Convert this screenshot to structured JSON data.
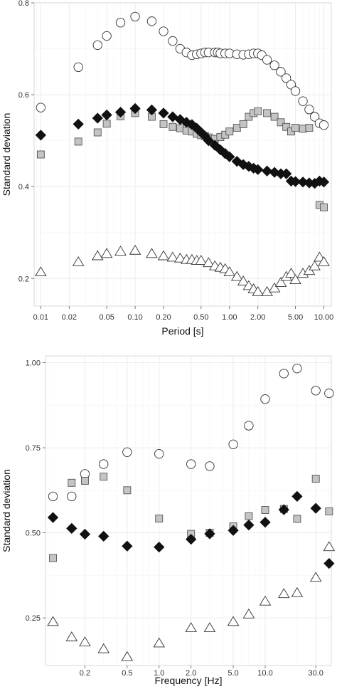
{
  "chart_data": [
    {
      "type": "scatter",
      "xscale": "log",
      "xlabel": "Period [s]",
      "ylabel": "Standard deviation",
      "xlim": [
        0.0085,
        12
      ],
      "ylim": [
        0.14,
        0.8
      ],
      "xticks": [
        0.01,
        0.02,
        0.05,
        0.1,
        0.2,
        0.5,
        1.0,
        2.0,
        5.0,
        10.0
      ],
      "xtick_labels": [
        "0.01",
        "0.02",
        "0.05",
        "0.10",
        "0.20",
        "0.50",
        "1.00",
        "2.00",
        "5.00",
        "10.00"
      ],
      "yticks": [
        0.2,
        0.4,
        0.6,
        0.8
      ],
      "ytick_labels": [
        "0.2",
        "0.4",
        "0.6",
        "0.8"
      ],
      "grid": true,
      "series": [
        {
          "marker": "circle",
          "fill": "#ffffff",
          "stroke": "#333333",
          "x": [
            0.01,
            0.025,
            0.04,
            0.05,
            0.07,
            0.1,
            0.15,
            0.2,
            0.25,
            0.3,
            0.35,
            0.4,
            0.45,
            0.5,
            0.55,
            0.6,
            0.7,
            0.75,
            0.8,
            0.9,
            1.0,
            1.2,
            1.4,
            1.6,
            1.8,
            2.0,
            2.2,
            2.5,
            3.0,
            3.5,
            4.0,
            4.5,
            5.0,
            6.0,
            7.0,
            8.0,
            9.0,
            10.0
          ],
          "y": [
            0.572,
            0.66,
            0.708,
            0.728,
            0.757,
            0.77,
            0.76,
            0.738,
            0.717,
            0.7,
            0.692,
            0.686,
            0.688,
            0.69,
            0.692,
            0.692,
            0.692,
            0.692,
            0.69,
            0.69,
            0.69,
            0.688,
            0.687,
            0.688,
            0.69,
            0.69,
            0.686,
            0.676,
            0.664,
            0.65,
            0.636,
            0.622,
            0.608,
            0.586,
            0.568,
            0.552,
            0.538,
            0.534
          ]
        },
        {
          "marker": "square",
          "fill": "#c4c4c4",
          "stroke": "#555555",
          "x": [
            0.01,
            0.025,
            0.04,
            0.05,
            0.07,
            0.1,
            0.15,
            0.2,
            0.25,
            0.3,
            0.35,
            0.4,
            0.45,
            0.5,
            0.55,
            0.6,
            0.7,
            0.8,
            0.9,
            1.0,
            1.2,
            1.4,
            1.6,
            1.8,
            2.0,
            2.5,
            3.0,
            3.5,
            4.0,
            4.5,
            5.0,
            6.0,
            7.0,
            9.0,
            10.0
          ],
          "y": [
            0.47,
            0.498,
            0.518,
            0.537,
            0.553,
            0.56,
            0.552,
            0.536,
            0.53,
            0.527,
            0.522,
            0.52,
            0.515,
            0.512,
            0.51,
            0.507,
            0.504,
            0.508,
            0.513,
            0.52,
            0.528,
            0.536,
            0.552,
            0.56,
            0.564,
            0.56,
            0.552,
            0.54,
            0.53,
            0.52,
            0.528,
            0.526,
            0.528,
            0.36,
            0.355
          ]
        },
        {
          "marker": "diamond",
          "fill": "#111111",
          "stroke": "#111111",
          "x": [
            0.01,
            0.025,
            0.04,
            0.05,
            0.07,
            0.1,
            0.15,
            0.2,
            0.25,
            0.3,
            0.35,
            0.4,
            0.45,
            0.5,
            0.55,
            0.6,
            0.7,
            0.8,
            0.9,
            1.0,
            1.2,
            1.4,
            1.6,
            1.8,
            2.0,
            2.5,
            3.0,
            3.5,
            4.0,
            4.5,
            5.0,
            6.0,
            7.0,
            8.0,
            9.0,
            10.0
          ],
          "y": [
            0.512,
            0.536,
            0.549,
            0.556,
            0.562,
            0.57,
            0.567,
            0.56,
            0.552,
            0.546,
            0.54,
            0.535,
            0.527,
            0.518,
            0.51,
            0.5,
            0.49,
            0.48,
            0.472,
            0.465,
            0.455,
            0.448,
            0.444,
            0.44,
            0.437,
            0.434,
            0.431,
            0.428,
            0.428,
            0.412,
            0.411,
            0.41,
            0.408,
            0.407,
            0.412,
            0.41
          ]
        },
        {
          "marker": "triangle",
          "fill": "#ffffff",
          "stroke": "#333333",
          "x": [
            0.01,
            0.025,
            0.04,
            0.05,
            0.07,
            0.1,
            0.15,
            0.2,
            0.25,
            0.3,
            0.35,
            0.4,
            0.45,
            0.5,
            0.6,
            0.7,
            0.8,
            0.9,
            1.0,
            1.2,
            1.4,
            1.6,
            1.8,
            2.0,
            2.5,
            3.0,
            3.5,
            4.0,
            4.5,
            5.0,
            6.0,
            7.0,
            8.0,
            9.0,
            10.0
          ],
          "y": [
            0.215,
            0.237,
            0.25,
            0.255,
            0.26,
            0.262,
            0.255,
            0.25,
            0.247,
            0.245,
            0.242,
            0.242,
            0.24,
            0.24,
            0.235,
            0.228,
            0.225,
            0.222,
            0.215,
            0.205,
            0.195,
            0.185,
            0.178,
            0.172,
            0.172,
            0.18,
            0.192,
            0.205,
            0.212,
            0.198,
            0.212,
            0.218,
            0.228,
            0.247,
            0.237
          ]
        }
      ]
    },
    {
      "type": "scatter",
      "xscale": "log",
      "xlabel": "Frequency [Hz]",
      "ylabel": "Standard deviation",
      "xlim": [
        0.085,
        42
      ],
      "ylim": [
        0.11,
        1.02
      ],
      "xticks": [
        0.2,
        0.5,
        1.0,
        2.0,
        5.0,
        10.0,
        30.0
      ],
      "xtick_labels": [
        "0.2",
        "0.5",
        "1.0",
        "2.0",
        "5.0",
        "10.0",
        "30.0"
      ],
      "yticks": [
        0.25,
        0.5,
        0.75,
        1.0
      ],
      "ytick_labels": [
        "0.25",
        "0.50",
        "0.75",
        "1.00"
      ],
      "grid": true,
      "series": [
        {
          "marker": "circle",
          "fill": "#ffffff",
          "stroke": "#333333",
          "x": [
            0.1,
            0.15,
            0.2,
            0.3,
            0.5,
            1.0,
            2.0,
            3.0,
            5.0,
            7.0,
            10.0,
            15.0,
            20.0,
            30.0,
            40.0
          ],
          "y": [
            0.607,
            0.607,
            0.673,
            0.702,
            0.737,
            0.732,
            0.702,
            0.696,
            0.76,
            0.815,
            0.893,
            0.968,
            0.983,
            0.918,
            0.91
          ]
        },
        {
          "marker": "square",
          "fill": "#c4c4c4",
          "stroke": "#555555",
          "x": [
            0.1,
            0.15,
            0.2,
            0.3,
            0.5,
            1.0,
            2.0,
            3.0,
            5.0,
            7.0,
            10.0,
            15.0,
            20.0,
            30.0,
            40.0
          ],
          "y": [
            0.426,
            0.647,
            0.653,
            0.665,
            0.625,
            0.542,
            0.497,
            0.5,
            0.519,
            0.549,
            0.567,
            0.57,
            0.541,
            0.659,
            0.563
          ]
        },
        {
          "marker": "diamond",
          "fill": "#111111",
          "stroke": "#111111",
          "x": [
            0.1,
            0.15,
            0.2,
            0.3,
            0.5,
            1.0,
            2.0,
            3.0,
            5.0,
            7.0,
            10.0,
            15.0,
            20.0,
            30.0,
            40.0
          ],
          "y": [
            0.545,
            0.513,
            0.496,
            0.49,
            0.461,
            0.458,
            0.481,
            0.497,
            0.507,
            0.523,
            0.531,
            0.568,
            0.607,
            0.572,
            0.41
          ]
        },
        {
          "marker": "triangle",
          "fill": "#ffffff",
          "stroke": "#333333",
          "x": [
            0.1,
            0.15,
            0.2,
            0.3,
            0.5,
            1.0,
            2.0,
            3.0,
            5.0,
            7.0,
            10.0,
            15.0,
            20.0,
            30.0,
            40.0
          ],
          "y": [
            0.24,
            0.195,
            0.18,
            0.16,
            0.137,
            0.177,
            0.222,
            0.222,
            0.24,
            0.262,
            0.3,
            0.322,
            0.325,
            0.37,
            0.46
          ]
        }
      ]
    }
  ]
}
